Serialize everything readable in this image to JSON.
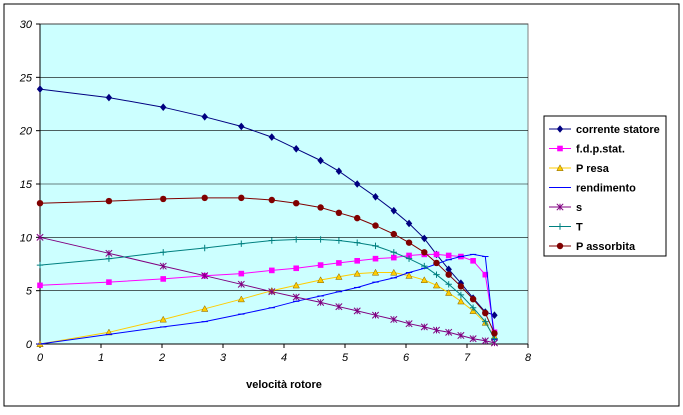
{
  "chart_data": {
    "type": "line",
    "xlabel": "velocità rotore",
    "ylabel": "",
    "xlim": [
      0,
      8
    ],
    "ylim": [
      0,
      30
    ],
    "xticks": [
      0,
      1,
      2,
      3,
      4,
      5,
      6,
      7,
      8
    ],
    "yticks": [
      0,
      5,
      10,
      15,
      20,
      25,
      30
    ],
    "grid": "horizontal",
    "legend_position": "right",
    "plot_background": "#ccffff",
    "series": [
      {
        "name": "corrente statore",
        "color": "#000080",
        "marker": "diamond",
        "x": [
          0,
          1.13,
          2.02,
          2.7,
          3.3,
          3.8,
          4.2,
          4.6,
          4.9,
          5.2,
          5.5,
          5.8,
          6.05,
          6.3,
          6.5,
          6.7,
          6.9,
          7.1,
          7.3,
          7.45
        ],
        "y": [
          23.9,
          23.1,
          22.2,
          21.3,
          20.4,
          19.4,
          18.3,
          17.2,
          16.2,
          15.0,
          13.8,
          12.5,
          11.3,
          9.9,
          8.4,
          7.0,
          5.7,
          4.3,
          3.0,
          2.7
        ]
      },
      {
        "name": "f.d.p.stat.",
        "color": "#ff00ff",
        "marker": "square",
        "x": [
          0,
          1.13,
          2.02,
          2.7,
          3.3,
          3.8,
          4.2,
          4.6,
          4.9,
          5.2,
          5.5,
          5.8,
          6.05,
          6.3,
          6.5,
          6.7,
          6.9,
          7.1,
          7.3,
          7.45
        ],
        "y": [
          5.5,
          5.8,
          6.1,
          6.4,
          6.6,
          6.9,
          7.1,
          7.4,
          7.6,
          7.8,
          8.0,
          8.1,
          8.3,
          8.4,
          8.4,
          8.3,
          8.2,
          7.8,
          6.5,
          1.1
        ]
      },
      {
        "name": "P resa",
        "color": "#ffcc00",
        "marker": "triangle",
        "x": [
          0,
          1.13,
          2.02,
          2.7,
          3.3,
          3.8,
          4.2,
          4.6,
          4.9,
          5.2,
          5.5,
          5.8,
          6.05,
          6.3,
          6.5,
          6.7,
          6.9,
          7.1,
          7.3,
          7.45
        ],
        "y": [
          0,
          1.1,
          2.3,
          3.3,
          4.2,
          5.0,
          5.5,
          6.0,
          6.3,
          6.6,
          6.7,
          6.7,
          6.4,
          6.0,
          5.5,
          4.8,
          4.0,
          3.1,
          2.0,
          0.7
        ]
      },
      {
        "name": "rendimento",
        "color": "#0000ff",
        "marker": "dash",
        "x": [
          0,
          1.13,
          2.02,
          2.7,
          3.3,
          3.8,
          4.2,
          4.6,
          4.9,
          5.2,
          5.5,
          5.8,
          6.05,
          6.3,
          6.5,
          6.7,
          6.9,
          7.1,
          7.3,
          7.45
        ],
        "y": [
          0,
          0.9,
          1.6,
          2.1,
          2.8,
          3.4,
          4.0,
          4.5,
          4.9,
          5.3,
          5.8,
          6.2,
          6.7,
          7.1,
          7.5,
          7.9,
          8.2,
          8.4,
          8.2,
          0.4
        ]
      },
      {
        "name": "s",
        "color": "#800080",
        "marker": "asterisk",
        "x": [
          0,
          1.13,
          2.02,
          2.7,
          3.3,
          3.8,
          4.2,
          4.6,
          4.9,
          5.2,
          5.5,
          5.8,
          6.05,
          6.3,
          6.5,
          6.7,
          6.9,
          7.1,
          7.3,
          7.45
        ],
        "y": [
          10.0,
          8.5,
          7.3,
          6.4,
          5.6,
          4.9,
          4.4,
          3.9,
          3.5,
          3.1,
          2.7,
          2.3,
          1.9,
          1.6,
          1.3,
          1.1,
          0.8,
          0.5,
          0.3,
          0.1
        ]
      },
      {
        "name": "T",
        "color": "#008080",
        "marker": "plus",
        "x": [
          0,
          1.13,
          2.02,
          2.7,
          3.3,
          3.8,
          4.2,
          4.6,
          4.9,
          5.2,
          5.5,
          5.8,
          6.05,
          6.3,
          6.5,
          6.7,
          6.9,
          7.1,
          7.3,
          7.45
        ],
        "y": [
          7.4,
          8.0,
          8.6,
          9.0,
          9.4,
          9.7,
          9.8,
          9.8,
          9.7,
          9.5,
          9.2,
          8.6,
          8.0,
          7.3,
          6.5,
          5.6,
          4.6,
          3.4,
          2.1,
          0.5
        ]
      },
      {
        "name": "P assorbita",
        "color": "#800000",
        "marker": "circle",
        "x": [
          0,
          1.13,
          2.02,
          2.7,
          3.3,
          3.8,
          4.2,
          4.6,
          4.9,
          5.2,
          5.5,
          5.8,
          6.05,
          6.3,
          6.5,
          6.7,
          6.9,
          7.1,
          7.3,
          7.45
        ],
        "y": [
          13.2,
          13.4,
          13.6,
          13.7,
          13.7,
          13.5,
          13.2,
          12.8,
          12.3,
          11.8,
          11.1,
          10.3,
          9.5,
          8.6,
          7.6,
          6.5,
          5.4,
          4.2,
          2.9,
          1.0
        ]
      }
    ]
  }
}
